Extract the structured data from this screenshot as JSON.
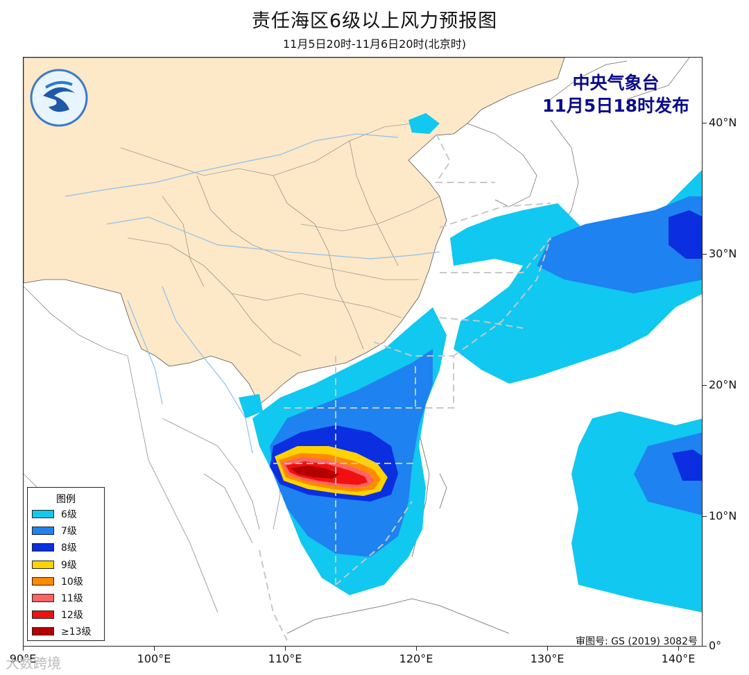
{
  "title": "责任海区6级以上风力预报图",
  "subtitle": "11月5日20时-11月6日20时(北京时)",
  "issuer": {
    "line1": "中央气象台",
    "line2": "11月5日18时发布"
  },
  "legend": {
    "title": "图例",
    "items": [
      {
        "label": "6级",
        "color": "#10c8f0"
      },
      {
        "label": "7级",
        "color": "#1e82f0"
      },
      {
        "label": "8级",
        "color": "#0a2ee0"
      },
      {
        "label": "9级",
        "color": "#ffd200"
      },
      {
        "label": "10级",
        "color": "#ff8a00"
      },
      {
        "label": "11级",
        "color": "#ff6464"
      },
      {
        "label": "12级",
        "color": "#f01010"
      },
      {
        "label": "≥13级",
        "color": "#b40000"
      }
    ]
  },
  "axes": {
    "x_labels": [
      "90°E",
      "100°E",
      "110°E",
      "120°E",
      "130°E",
      "140°E"
    ],
    "y_labels": [
      "40°N",
      "30°N",
      "20°N",
      "10°N",
      "0°"
    ]
  },
  "approval_number": "审图号: GS (2019) 3082号",
  "watermark": "大数跨境",
  "colors": {
    "land_china": "#fde8c8",
    "boundary": "#555555",
    "dashed_zone": "#c8c8c8"
  }
}
